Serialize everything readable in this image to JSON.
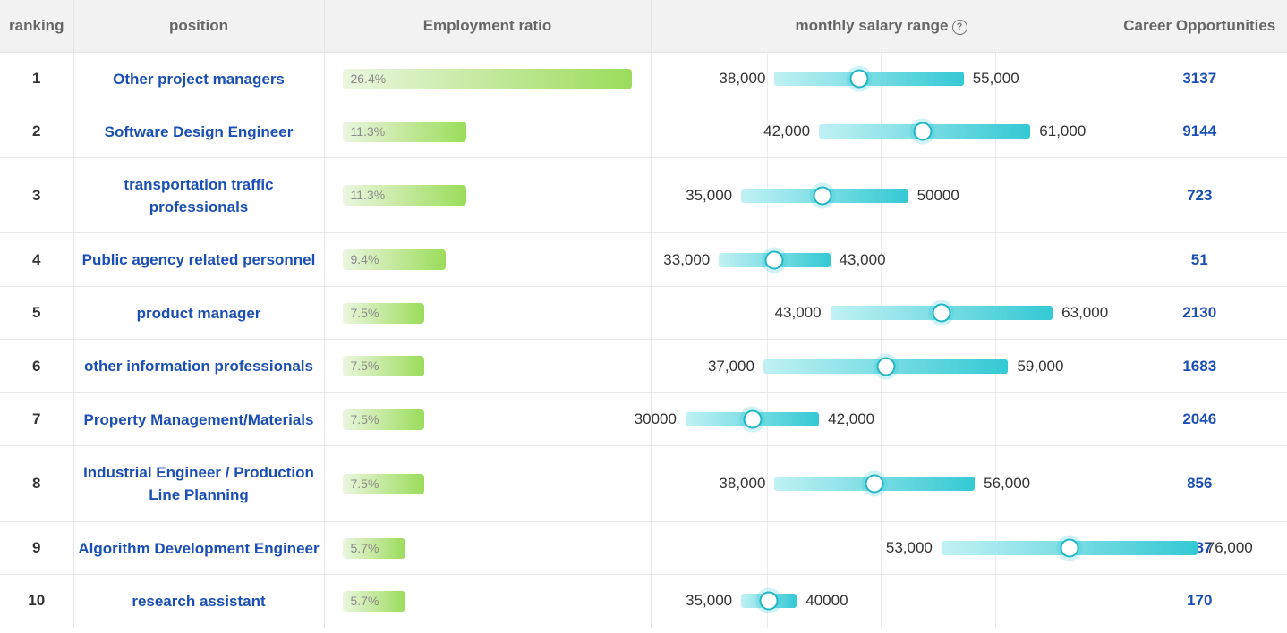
{
  "headers": {
    "ranking": "ranking",
    "position": "position",
    "ratio": "Employment ratio",
    "salary": "monthly salary range",
    "opportunities": "Career Opportunities"
  },
  "salary_scale": {
    "min": 22000,
    "max": 80000
  },
  "rows": [
    {
      "rank": "1",
      "position": "Other project managers",
      "ratio": 26.4,
      "ratio_label": "26.4%",
      "low": 38000,
      "high": 55000,
      "low_label": "38,000",
      "high_label": "55,000",
      "mid_frac": 0.45,
      "opportunities": "3137"
    },
    {
      "rank": "2",
      "position": "Software Design Engineer",
      "ratio": 11.3,
      "ratio_label": "11.3%",
      "low": 42000,
      "high": 61000,
      "low_label": "42,000",
      "high_label": "61,000",
      "mid_frac": 0.49,
      "opportunities": "9144"
    },
    {
      "rank": "3",
      "position": "transportation traffic professionals",
      "ratio": 11.3,
      "ratio_label": "11.3%",
      "low": 35000,
      "high": 50000,
      "low_label": "35,000",
      "high_label": "50000",
      "mid_frac": 0.49,
      "opportunities": "723"
    },
    {
      "rank": "4",
      "position": "Public agency related personnel",
      "ratio": 9.4,
      "ratio_label": "9.4%",
      "low": 33000,
      "high": 43000,
      "low_label": "33,000",
      "high_label": "43,000",
      "mid_frac": 0.5,
      "opportunities": "51"
    },
    {
      "rank": "5",
      "position": "product manager",
      "ratio": 7.5,
      "ratio_label": "7.5%",
      "low": 43000,
      "high": 63000,
      "low_label": "43,000",
      "high_label": "63,000",
      "mid_frac": 0.5,
      "opportunities": "2130"
    },
    {
      "rank": "6",
      "position": "other information professionals",
      "ratio": 7.5,
      "ratio_label": "7.5%",
      "low": 37000,
      "high": 59000,
      "low_label": "37,000",
      "high_label": "59,000",
      "mid_frac": 0.5,
      "opportunities": "1683"
    },
    {
      "rank": "7",
      "position": "Property Management/Materials",
      "ratio": 7.5,
      "ratio_label": "7.5%",
      "low": 30000,
      "high": 42000,
      "low_label": "30000",
      "high_label": "42,000",
      "mid_frac": 0.5,
      "opportunities": "2046"
    },
    {
      "rank": "8",
      "position": "Industrial Engineer / Production Line Planning",
      "ratio": 7.5,
      "ratio_label": "7.5%",
      "low": 38000,
      "high": 56000,
      "low_label": "38,000",
      "high_label": "56,000",
      "mid_frac": 0.5,
      "opportunities": "856"
    },
    {
      "rank": "9",
      "position": "Algorithm Development Engineer",
      "ratio": 5.7,
      "ratio_label": "5.7%",
      "low": 53000,
      "high": 76000,
      "low_label": "53,000",
      "high_label": "76,000",
      "mid_frac": 0.5,
      "opportunities": "787"
    },
    {
      "rank": "10",
      "position": "research assistant",
      "ratio": 5.7,
      "ratio_label": "5.7%",
      "low": 35000,
      "high": 40000,
      "low_label": "35,000",
      "high_label": "40000",
      "mid_frac": 0.5,
      "opportunities": "170"
    }
  ]
}
